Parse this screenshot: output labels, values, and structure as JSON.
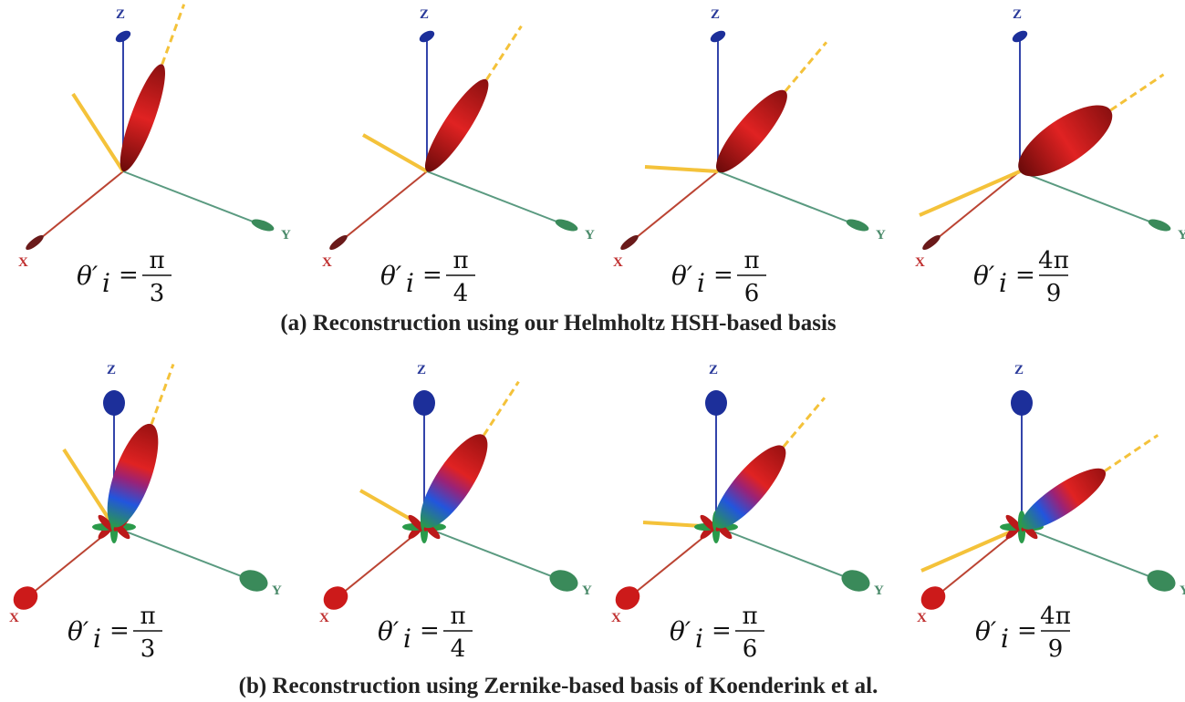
{
  "rows": [
    {
      "caption": "(a) Reconstruction using our Helmholtz HSH-based basis",
      "panels": [
        {
          "axes": [
            "X",
            "Y",
            "Z"
          ],
          "theta": "θ′",
          "sub": "i",
          "eq": "=",
          "num": "π",
          "den": "3"
        },
        {
          "axes": [
            "X",
            "Y",
            "Z"
          ],
          "theta": "θ′",
          "sub": "i",
          "eq": "=",
          "num": "π",
          "den": "4"
        },
        {
          "axes": [
            "X",
            "Y",
            "Z"
          ],
          "theta": "θ′",
          "sub": "i",
          "eq": "=",
          "num": "π",
          "den": "6"
        },
        {
          "axes": [
            "X",
            "Y",
            "Z"
          ],
          "theta": "θ′",
          "sub": "i",
          "eq": "=",
          "num": "4π",
          "den": "9"
        }
      ]
    },
    {
      "caption": "(b) Reconstruction using Zernike-based basis of Koenderink et al.",
      "panels": [
        {
          "axes": [
            "X",
            "Y",
            "Z"
          ],
          "theta": "θ′",
          "sub": "i",
          "eq": "=",
          "num": "π",
          "den": "3"
        },
        {
          "axes": [
            "X",
            "Y",
            "Z"
          ],
          "theta": "θ′",
          "sub": "i",
          "eq": "=",
          "num": "π",
          "den": "4"
        },
        {
          "axes": [
            "X",
            "Y",
            "Z"
          ],
          "theta": "θ′",
          "sub": "i",
          "eq": "=",
          "num": "π",
          "den": "6"
        },
        {
          "axes": [
            "X",
            "Y",
            "Z"
          ],
          "theta": "θ′",
          "sub": "i",
          "eq": "=",
          "num": "4π",
          "den": "9"
        }
      ]
    }
  ]
}
